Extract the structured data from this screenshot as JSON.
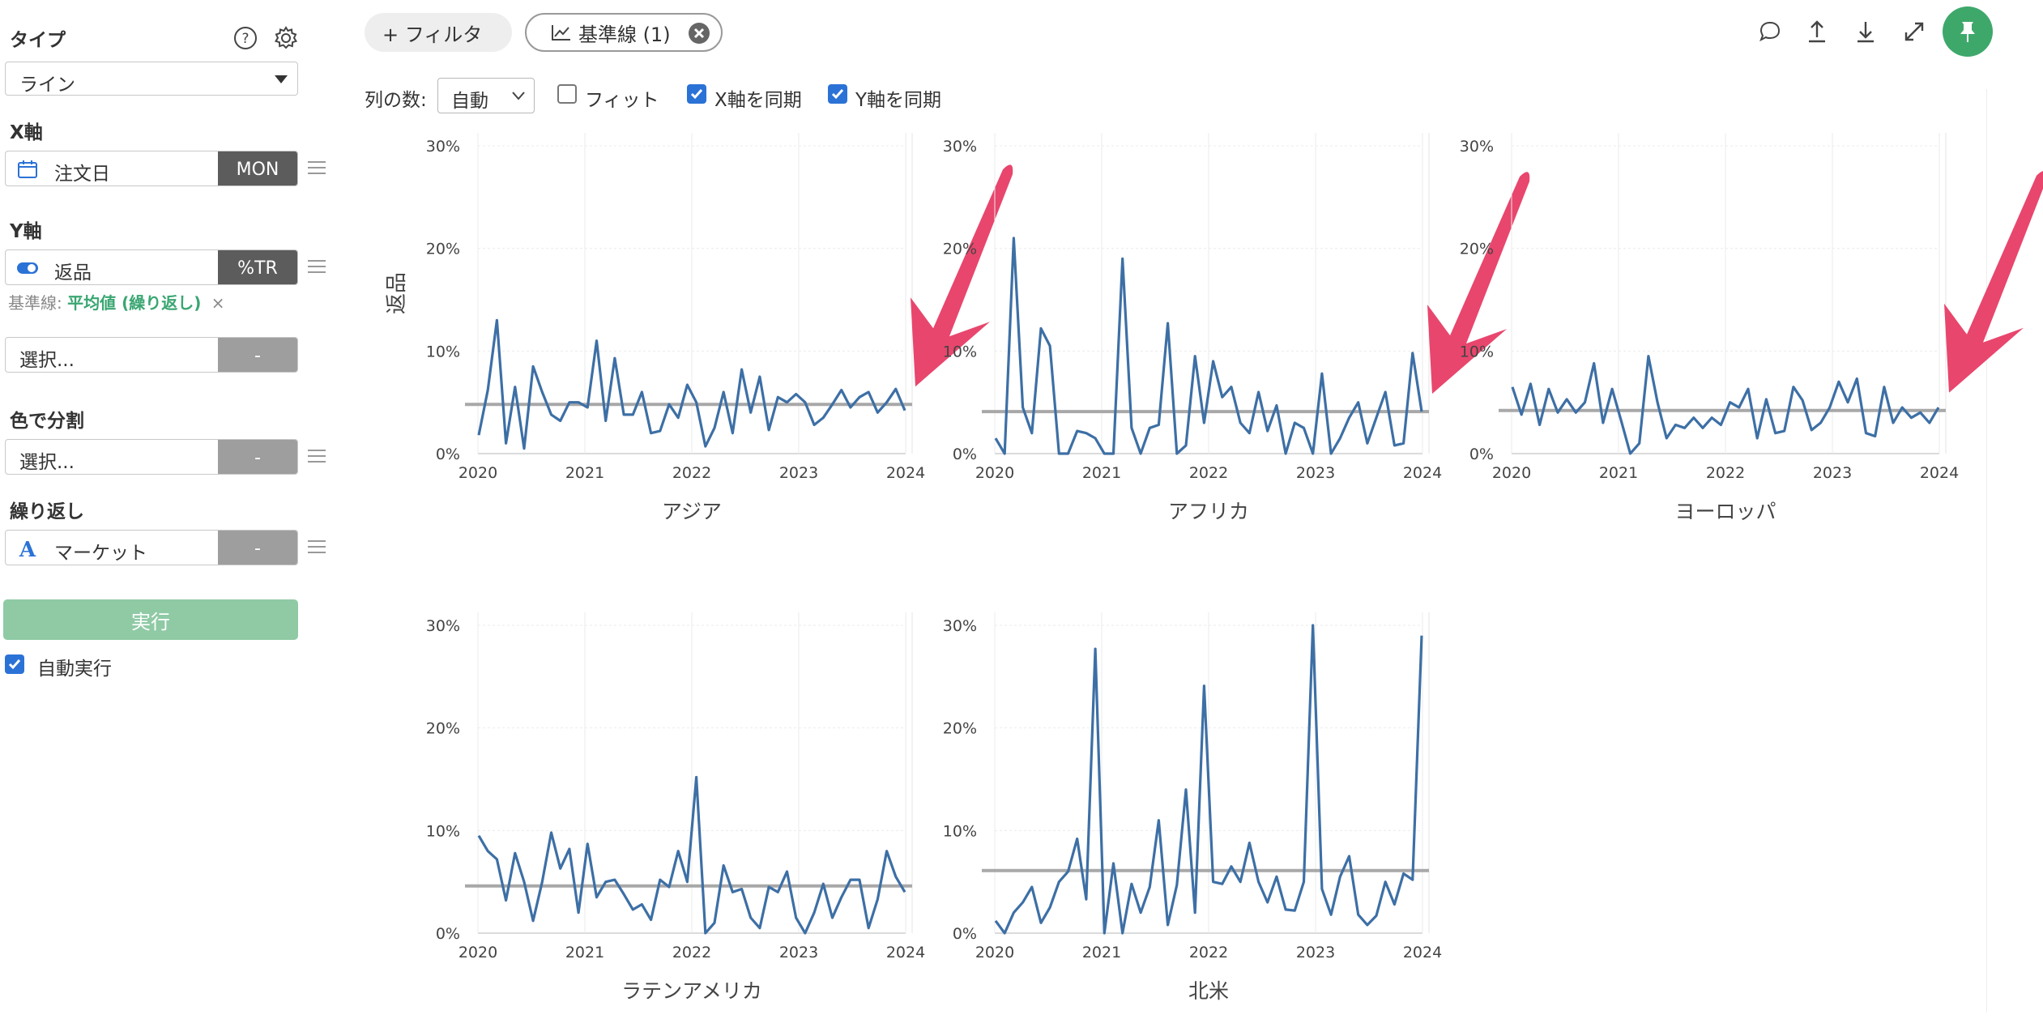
{
  "sidebar": {
    "type_title": "タイプ",
    "type_value": "ライン",
    "x_title": "X軸",
    "x_field": "注文日",
    "x_tag": "MON",
    "y_title": "Y軸",
    "y_field": "返品",
    "y_tag": "%TR",
    "refline_label": "基準線:",
    "refline_value": "平均値 (繰り返し)",
    "refline_remove": "×",
    "extra_placeholder": "選択...",
    "extra_tag": "-",
    "color_title": "色で分割",
    "color_placeholder": "選択...",
    "color_tag": "-",
    "repeat_title": "繰り返し",
    "repeat_field": "マーケット",
    "repeat_tag": "-",
    "run_label": "実行",
    "auto_run_label": "自動実行"
  },
  "toolbar": {
    "filter_label": "+ フィルタ",
    "baseline_label": "基準線 (1)",
    "cols_label": "列の数:",
    "cols_value": "自動",
    "fit_label": "フィット",
    "sync_x_label": "X軸を同期",
    "sync_y_label": "Y軸を同期"
  },
  "colors": {
    "line": "#3d6fa5",
    "baseline": "#a8a8a8",
    "arrow": "#e8466d",
    "accent": "#3ea86b",
    "run": "#8fcaa5"
  },
  "chart_data": {
    "type": "line",
    "ylabel": "返品",
    "ylim": [
      0,
      30
    ],
    "yticks": [
      "0%",
      "10%",
      "20%",
      "30%"
    ],
    "xticks": [
      "2020",
      "2021",
      "2022",
      "2023",
      "2024"
    ],
    "series_note": "monthly values Jan 2020 - Dec 2023 (%)",
    "panels": [
      {
        "name": "アジア",
        "baseline": 4.8,
        "values": [
          1.8,
          6.2,
          13.0,
          1.0,
          6.5,
          0.5,
          8.5,
          6.0,
          3.8,
          3.2,
          5.0,
          5.0,
          4.5,
          11.0,
          3.2,
          9.3,
          3.8,
          3.8,
          6.0,
          2.0,
          2.2,
          4.8,
          3.5,
          6.7,
          5.0,
          0.7,
          2.5,
          6.0,
          2.0,
          8.2,
          4.0,
          7.5,
          2.3,
          5.5,
          5.0,
          5.8,
          5.0,
          2.8,
          3.5,
          4.8,
          6.2,
          4.5,
          5.5,
          6.0,
          4.0,
          5.0,
          6.3,
          4.2
        ]
      },
      {
        "name": "アフリカ",
        "baseline": 4.1,
        "values": [
          1.5,
          0.0,
          21.0,
          4.5,
          2.0,
          12.2,
          10.5,
          0.0,
          0.0,
          2.2,
          2.0,
          1.5,
          0.0,
          0.0,
          19.0,
          2.5,
          0.0,
          2.5,
          2.8,
          12.7,
          0.0,
          0.8,
          9.5,
          3.0,
          9.0,
          5.5,
          6.5,
          3.0,
          2.0,
          6.0,
          2.2,
          4.7,
          0.0,
          3.0,
          2.5,
          0.0,
          7.8,
          0.0,
          1.5,
          3.5,
          5.0,
          1.0,
          3.5,
          6.0,
          0.8,
          1.0,
          9.8,
          4.1
        ]
      },
      {
        "name": "ヨーロッパ",
        "baseline": 4.2,
        "values": [
          6.5,
          3.8,
          6.8,
          2.8,
          6.3,
          4.0,
          5.3,
          4.0,
          5.0,
          8.8,
          3.0,
          6.3,
          3.2,
          0.0,
          1.0,
          9.5,
          5.0,
          1.5,
          2.8,
          2.5,
          3.5,
          2.5,
          3.5,
          2.8,
          5.0,
          4.5,
          6.3,
          1.5,
          5.3,
          2.0,
          2.2,
          6.5,
          5.2,
          2.3,
          3.0,
          4.5,
          7.0,
          5.0,
          7.3,
          2.0,
          1.7,
          6.5,
          3.0,
          4.5,
          3.5,
          4.0,
          3.0,
          4.5
        ]
      },
      {
        "name": "ラテンアメリカ",
        "baseline": 4.6,
        "values": [
          9.5,
          8.0,
          7.2,
          3.2,
          7.8,
          5.0,
          1.2,
          5.0,
          9.8,
          6.3,
          8.2,
          2.0,
          8.7,
          3.5,
          5.0,
          5.2,
          3.8,
          2.3,
          2.8,
          1.3,
          5.2,
          4.5,
          8.0,
          5.0,
          15.2,
          0.0,
          1.0,
          6.6,
          4.0,
          4.3,
          1.5,
          0.5,
          4.5,
          4.0,
          6.0,
          1.5,
          0.0,
          2.0,
          4.8,
          1.5,
          3.5,
          5.2,
          5.2,
          0.5,
          3.3,
          8.0,
          5.5,
          4.0
        ]
      },
      {
        "name": "北米",
        "baseline": 6.1,
        "values": [
          1.2,
          0.0,
          2.0,
          3.0,
          4.5,
          1.0,
          2.5,
          5.0,
          6.0,
          9.2,
          3.3,
          27.7,
          0.0,
          6.8,
          0.0,
          4.8,
          2.0,
          4.5,
          11.0,
          0.8,
          4.7,
          14.0,
          2.0,
          24.1,
          5.0,
          4.8,
          6.5,
          5.0,
          8.8,
          5.0,
          3.0,
          5.5,
          2.3,
          2.2,
          5.0,
          30.0,
          4.3,
          1.8,
          5.5,
          7.5,
          1.8,
          0.8,
          1.7,
          5.0,
          2.8,
          5.8,
          5.2,
          29.0
        ]
      }
    ]
  }
}
